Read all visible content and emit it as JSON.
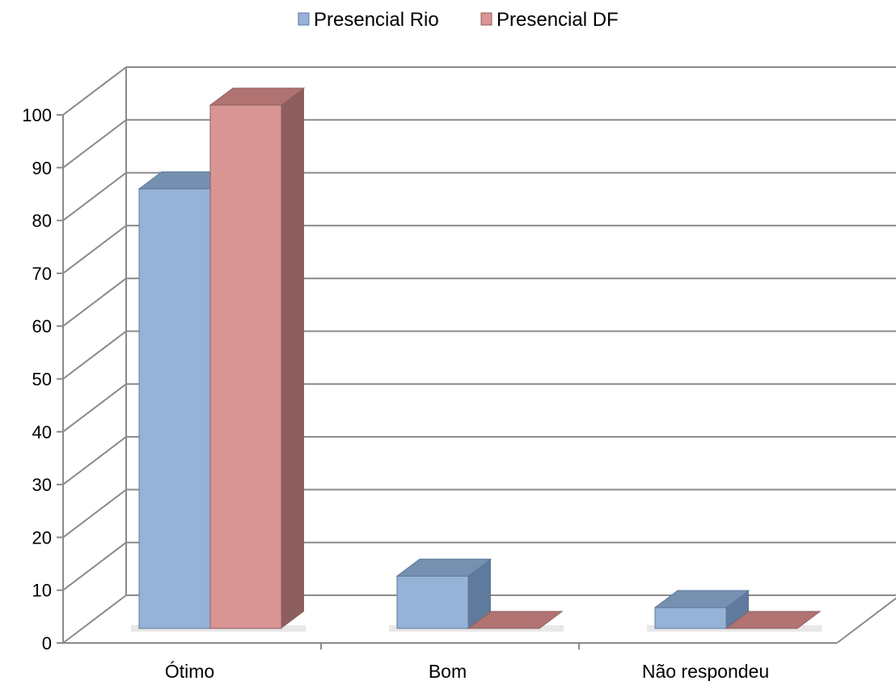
{
  "chart_data": {
    "type": "bar",
    "categories": [
      "Ótimo",
      "Bom",
      "Não respondeu"
    ],
    "series": [
      {
        "name": "Presencial Rio",
        "values": [
          84,
          10,
          4
        ]
      },
      {
        "name": "Presencial DF",
        "values": [
          100,
          0,
          0
        ]
      }
    ],
    "yticks": [
      "0",
      "10",
      "20",
      "30",
      "40",
      "50",
      "60",
      "70",
      "80",
      "90",
      "100"
    ],
    "ylim": [
      0,
      100
    ],
    "grid": true,
    "legend": "top-center",
    "three_d": true
  },
  "colors": {
    "rio_front": "#95b3d7",
    "rio_top": "#7590b0",
    "rio_side": "#5f7a9c",
    "df_front": "#d99594",
    "df_top": "#b07372",
    "df_side": "#8c5f5e",
    "grid": "#8a8a8a"
  }
}
